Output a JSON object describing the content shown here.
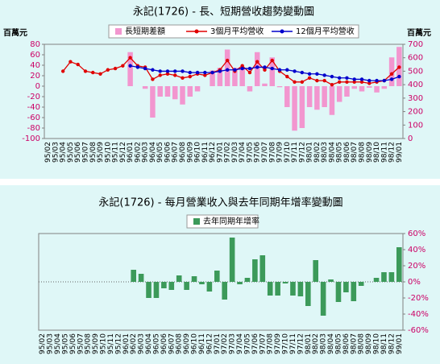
{
  "chart_data": [
    {
      "type": "combo",
      "title": "永記(1726) - 長、短期營收趨勢變動圖",
      "y_label": "百萬元",
      "y2_label": "百萬元",
      "categories": [
        "95/02",
        "95/03",
        "95/04",
        "95/05",
        "95/06",
        "95/07",
        "95/08",
        "95/09",
        "95/10",
        "95/11",
        "95/12",
        "96/01",
        "96/02",
        "96/03",
        "96/04",
        "96/05",
        "96/06",
        "96/07",
        "96/08",
        "96/09",
        "96/10",
        "96/11",
        "96/12",
        "97/01",
        "97/02",
        "97/03",
        "97/04",
        "97/05",
        "97/06",
        "97/07",
        "97/08",
        "97/09",
        "97/10",
        "97/11",
        "97/12",
        "98/01",
        "98/02",
        "98/03",
        "98/04",
        "98/05",
        "98/06",
        "98/07",
        "98/08",
        "98/09",
        "98/10",
        "98/11",
        "98/12",
        "99/01"
      ],
      "series": [
        {
          "name": "長短期差額",
          "type": "bar",
          "color": "#f296cf",
          "values": [
            null,
            null,
            null,
            null,
            null,
            null,
            null,
            null,
            null,
            null,
            null,
            65,
            0,
            -5,
            -60,
            -20,
            -20,
            -25,
            -35,
            -20,
            -10,
            0,
            30,
            35,
            70,
            35,
            35,
            -10,
            65,
            5,
            55,
            -2,
            -40,
            -85,
            -80,
            -40,
            -45,
            -40,
            -55,
            -30,
            -20,
            -5,
            -10,
            -3,
            -12,
            -5,
            55,
            75
          ]
        },
        {
          "name": "3個月平均營收",
          "type": "line",
          "axis": "y2",
          "color": "#e00000",
          "values": [
            null,
            null,
            500,
            570,
            550,
            500,
            490,
            480,
            510,
            520,
            540,
            600,
            540,
            530,
            440,
            470,
            480,
            470,
            450,
            460,
            480,
            470,
            490,
            510,
            580,
            500,
            540,
            490,
            570,
            510,
            580,
            500,
            460,
            420,
            420,
            450,
            430,
            430,
            400,
            420,
            420,
            420,
            420,
            410,
            420,
            430,
            480,
            530
          ]
        },
        {
          "name": "12個月平均營收",
          "type": "line",
          "axis": "y2",
          "color": "#0000cc",
          "values": [
            null,
            null,
            null,
            null,
            null,
            null,
            null,
            null,
            null,
            null,
            null,
            540,
            530,
            520,
            510,
            500,
            500,
            500,
            500,
            490,
            490,
            490,
            490,
            500,
            510,
            510,
            520,
            520,
            530,
            530,
            520,
            510,
            510,
            500,
            490,
            480,
            480,
            470,
            460,
            450,
            450,
            440,
            440,
            430,
            430,
            430,
            440,
            460
          ]
        }
      ],
      "ylim": [
        -100,
        80
      ],
      "yticks": [
        -100,
        -80,
        -60,
        -40,
        -20,
        0,
        20,
        40,
        60,
        80
      ],
      "y2lim": [
        0,
        700
      ],
      "y2ticks": [
        0,
        100,
        200,
        300,
        400,
        500,
        600,
        700
      ]
    },
    {
      "type": "bar",
      "title": "永記(1726) - 每月營業收入與去年同期年增率變動圖",
      "categories": [
        "95/02",
        "95/03",
        "95/04",
        "95/05",
        "95/06",
        "95/07",
        "95/08",
        "95/09",
        "95/10",
        "95/11",
        "95/12",
        "96/01",
        "96/02",
        "96/03",
        "96/04",
        "96/05",
        "96/06",
        "96/07",
        "96/08",
        "96/09",
        "96/10",
        "96/11",
        "96/12",
        "97/01",
        "97/02",
        "97/03",
        "97/04",
        "97/05",
        "97/06",
        "97/07",
        "97/08",
        "97/09",
        "97/10",
        "97/11",
        "97/12",
        "98/01",
        "98/02",
        "98/03",
        "98/04",
        "98/05",
        "98/06",
        "98/07",
        "98/08",
        "98/09",
        "98/10",
        "98/11",
        "98/12",
        "99/01"
      ],
      "series": [
        {
          "name": "去年同期年增率",
          "type": "bar",
          "axis": "y2",
          "color": "#3c9a5a",
          "values": [
            null,
            null,
            null,
            null,
            null,
            null,
            null,
            null,
            null,
            null,
            null,
            null,
            15,
            10,
            -20,
            -20,
            -8,
            -10,
            8,
            -10,
            7,
            -3,
            -12,
            14,
            -22,
            55,
            -3,
            5,
            28,
            33,
            -17,
            -17,
            -2,
            -17,
            -18,
            -30,
            27,
            -42,
            3,
            -25,
            -13,
            -24,
            -5,
            0,
            5,
            12,
            12,
            43
          ]
        }
      ],
      "y2lim": [
        -60,
        60
      ],
      "y2ticks": [
        {
          "value": -60,
          "label": "-60%"
        },
        {
          "value": -40,
          "label": "-40%"
        },
        {
          "value": -20,
          "label": "-20%"
        },
        {
          "value": 0,
          "label": "0%"
        },
        {
          "value": 20,
          "label": "20%"
        },
        {
          "value": 40,
          "label": "40%"
        },
        {
          "value": 60,
          "label": "60%"
        }
      ]
    }
  ]
}
